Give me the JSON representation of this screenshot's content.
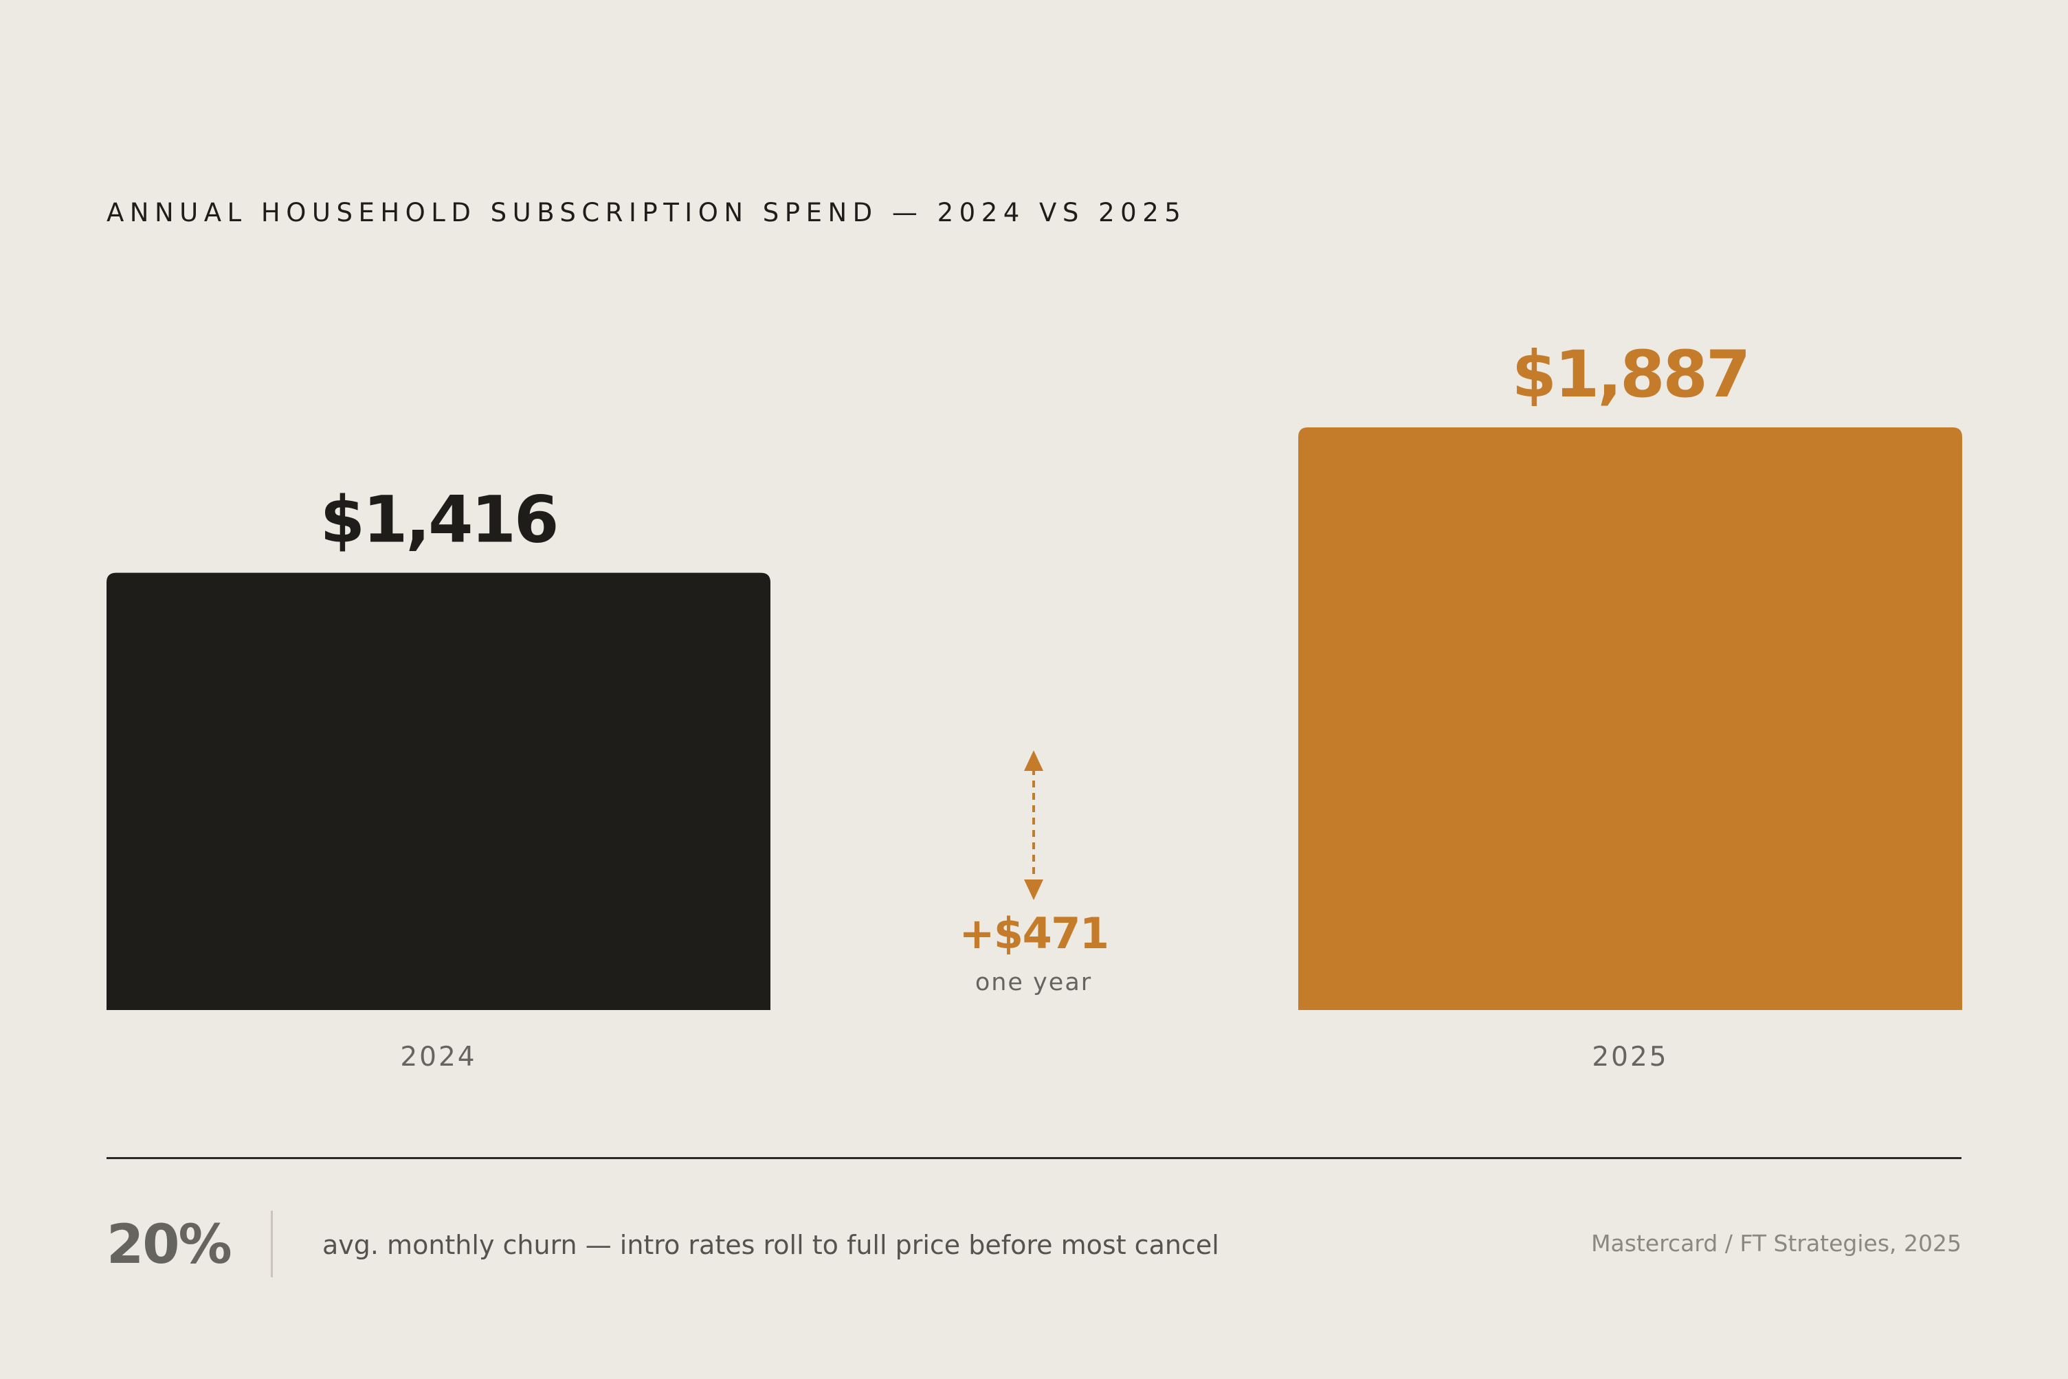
{
  "title": "ANNUAL HOUSEHOLD SUBSCRIPTION SPEND — 2024 VS 2025",
  "chart_data": {
    "type": "bar",
    "categories": [
      "2024",
      "2025"
    ],
    "values": [
      1416,
      1887
    ],
    "value_labels": [
      "$1,416",
      "$1,887"
    ],
    "bar_colors": [
      "#1E1D1A",
      "#C47C2B"
    ],
    "label_colors": [
      "#1E1D1A",
      "#C47C2B"
    ],
    "ylim": [
      0,
      1887
    ],
    "annotation": {
      "delta": 471,
      "label": "+$471",
      "sublabel": "one year",
      "color": "#C47C2B"
    }
  },
  "footer": {
    "stat": "20%",
    "description": "avg. monthly churn — intro rates roll to full price before most cancel",
    "source": "Mastercard / FT Strategies, 2025"
  },
  "colors": {
    "background": "#EDEAE3",
    "ink": "#1E1D1A",
    "accent": "#C47C2B",
    "muted": "#66645E"
  }
}
